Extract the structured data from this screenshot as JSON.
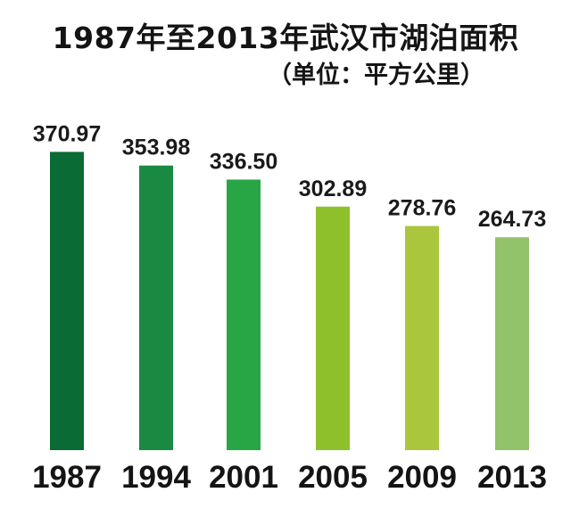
{
  "title": "1987年至2013年武汉市湖泊面积",
  "subtitle": "（单位：平方公里）",
  "chart_data": {
    "type": "bar",
    "title": "1987年至2013年武汉市湖泊面积",
    "subtitle": "（单位：平方公里）",
    "categories": [
      "1987",
      "1994",
      "2001",
      "2005",
      "2009",
      "2013"
    ],
    "values": [
      370.97,
      353.98,
      336.5,
      302.89,
      278.76,
      264.73
    ],
    "value_labels": [
      "370.97",
      "353.98",
      "336.50",
      "302.89",
      "278.76",
      "264.73"
    ],
    "colors": [
      "#0b6b35",
      "#1a8a43",
      "#28a645",
      "#8ec02c",
      "#a9c63d",
      "#92c26a"
    ],
    "ylim": [
      0,
      380
    ],
    "grid": false,
    "legend": "none"
  }
}
